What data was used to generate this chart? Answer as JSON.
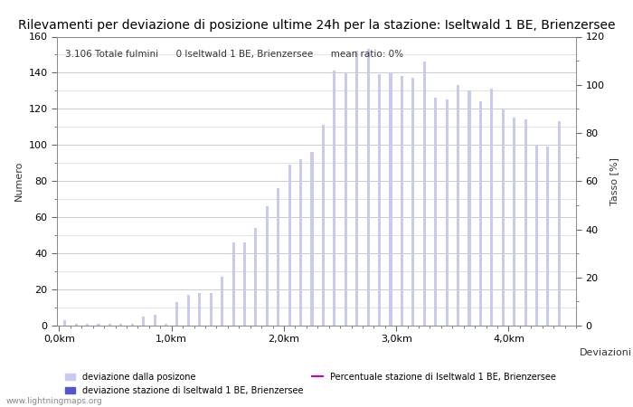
{
  "title": "Rilevamenti per deviazione di posizione ultime 24h per la stazione: Iseltwald 1 BE, Brienzersee",
  "info_text": "3.106 Totale fulmini      0 Iseltwald 1 BE, Brienzersee      mean ratio: 0%",
  "ylabel_left": "Numero",
  "ylabel_right": "Tasso [%]",
  "xlabel": "Deviazioni",
  "watermark": "www.lightningmaps.org",
  "ylim_left": [
    0,
    160
  ],
  "ylim_right": [
    0,
    120
  ],
  "yticks_left": [
    0,
    20,
    40,
    60,
    80,
    100,
    120,
    140,
    160
  ],
  "yticks_right": [
    0,
    20,
    40,
    60,
    80,
    100,
    120
  ],
  "xtick_labels": [
    "0,0km",
    "1,0km",
    "2,0km",
    "3,0km",
    "4,0km"
  ],
  "xtick_positions": [
    0.0,
    1.0,
    2.0,
    3.0,
    4.0
  ],
  "bar_positions": [
    0.05,
    0.15,
    0.25,
    0.35,
    0.45,
    0.55,
    0.65,
    0.75,
    0.85,
    0.95,
    1.05,
    1.15,
    1.25,
    1.35,
    1.45,
    1.55,
    1.65,
    1.75,
    1.85,
    1.95,
    2.05,
    2.15,
    2.25,
    2.35,
    2.45,
    2.55,
    2.65,
    2.75,
    2.85,
    2.95,
    3.05,
    3.15,
    3.25,
    3.35,
    3.45,
    3.55,
    3.65,
    3.75,
    3.85,
    3.95,
    4.05,
    4.15,
    4.25,
    4.35,
    4.45
  ],
  "bar_heights": [
    3,
    1,
    1,
    1,
    1,
    1,
    1,
    5,
    6,
    1,
    13,
    17,
    18,
    18,
    27,
    46,
    46,
    54,
    66,
    76,
    89,
    92,
    96,
    111,
    141,
    140,
    152,
    153,
    139,
    140,
    138,
    137,
    146,
    126,
    125,
    133,
    130,
    124,
    131,
    120,
    115,
    114,
    100,
    99,
    113
  ],
  "bar_color": "#c8ccec",
  "bar_color_station": "#5555cc",
  "station_bar_positions": [],
  "station_bar_heights": [],
  "line_color": "#cc00cc",
  "line_values": [],
  "legend_label_bars": "deviazione dalla posizone",
  "legend_label_station": "deviazione stazione di Iseltwald 1 BE, Brienzersee",
  "legend_label_line": "Percentuale stazione di Iseltwald 1 BE, Brienzersee",
  "bar_width": 0.025,
  "xlim": [
    -0.02,
    4.6
  ],
  "background_color": "#ffffff",
  "grid_color": "#cccccc",
  "title_fontsize": 10,
  "axis_fontsize": 8,
  "tick_fontsize": 8,
  "info_fontsize": 7.5
}
